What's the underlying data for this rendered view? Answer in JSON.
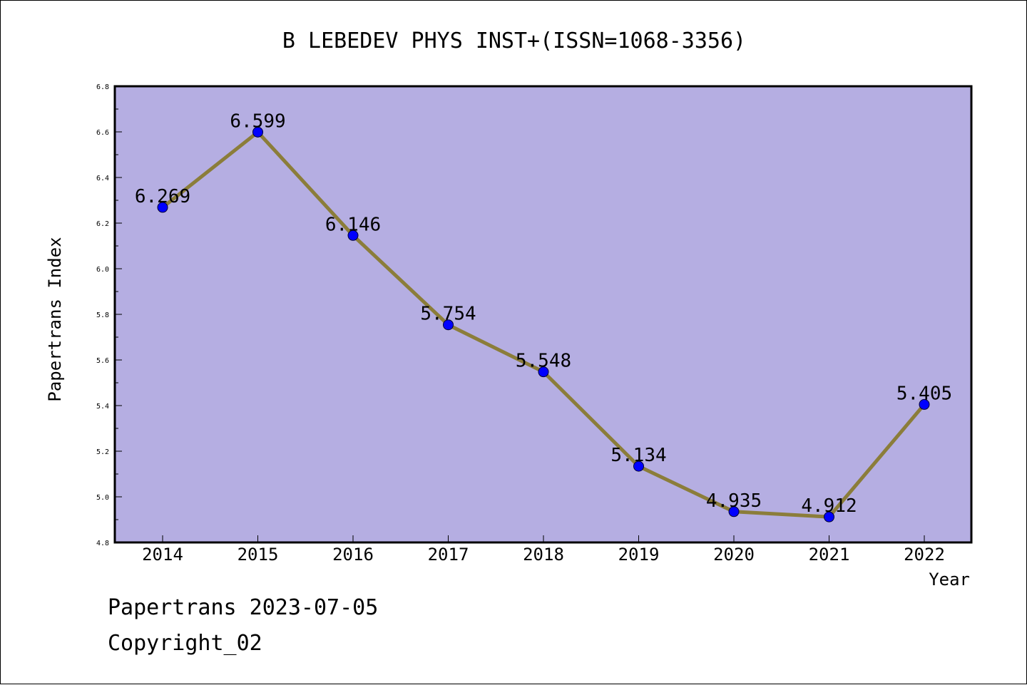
{
  "chart_data": {
    "type": "line",
    "title": "B LEBEDEV PHYS INST+(ISSN=1068-3356)",
    "xlabel": "Year",
    "ylabel": "Papertrans Index",
    "categories": [
      "2014",
      "2015",
      "2016",
      "2017",
      "2018",
      "2019",
      "2020",
      "2021",
      "2022"
    ],
    "series": [
      {
        "values": [
          6.269,
          6.599,
          6.146,
          5.754,
          5.548,
          5.134,
          4.935,
          4.912,
          5.405
        ],
        "labels": [
          "6.269",
          "6.599",
          "6.146",
          "5.754",
          "5.548",
          "5.134",
          "4.935",
          "4.912",
          "5.405"
        ]
      }
    ],
    "ylim": [
      4.8,
      6.8
    ],
    "yticks": [
      "4.8",
      "5.0",
      "5.2",
      "5.4",
      "5.6",
      "5.8",
      "6.0",
      "6.2",
      "6.4",
      "6.6",
      "6.8"
    ],
    "grid": false,
    "colors": {
      "plot_background": "#b5aee2",
      "line": "#8b7d3a",
      "marker": "#0000ff"
    }
  },
  "footer": {
    "line1": "Papertrans 2023-07-05",
    "line2": "Copyright_02"
  }
}
